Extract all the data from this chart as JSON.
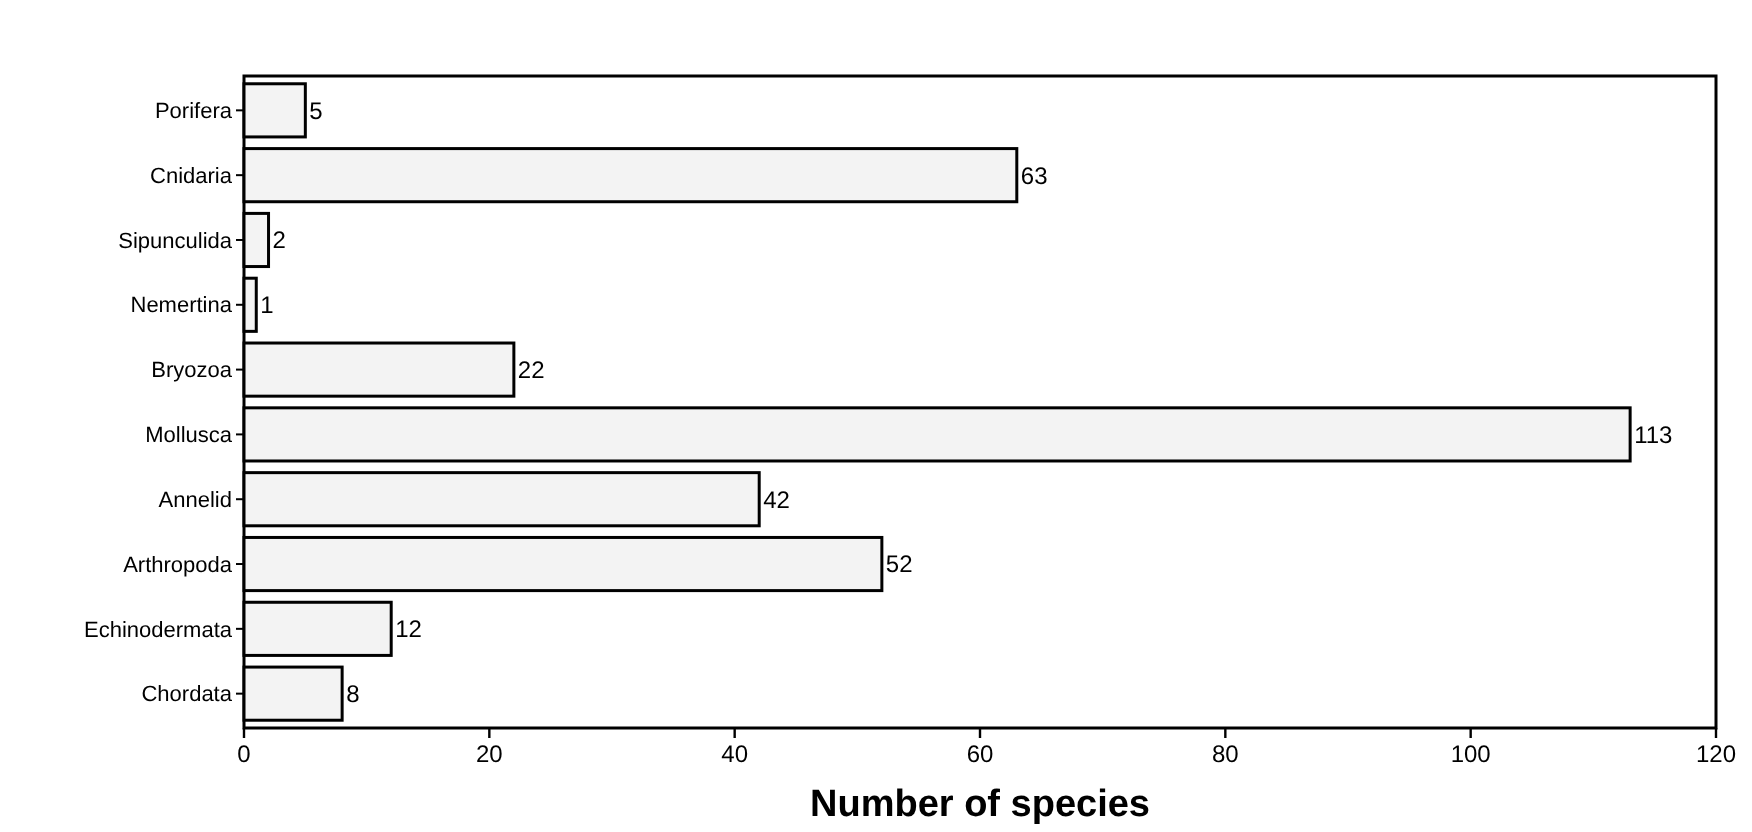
{
  "chart_data": {
    "type": "bar",
    "orientation": "horizontal",
    "xlabel": "Number of species",
    "categories": [
      "Porifera",
      "Cnidaria",
      "Sipunculida",
      "Nemertina",
      "Bryozoa",
      "Mollusca",
      "Annelid",
      "Arthropoda",
      "Echinodermata",
      "Chordata"
    ],
    "values": [
      5,
      63,
      2,
      1,
      22,
      113,
      42,
      52,
      12,
      8
    ],
    "color": "#f3f3f3",
    "xlim": [
      0,
      120
    ],
    "xticks": [
      0,
      20,
      40,
      60,
      80,
      100,
      120
    ],
    "data_labels": true
  }
}
